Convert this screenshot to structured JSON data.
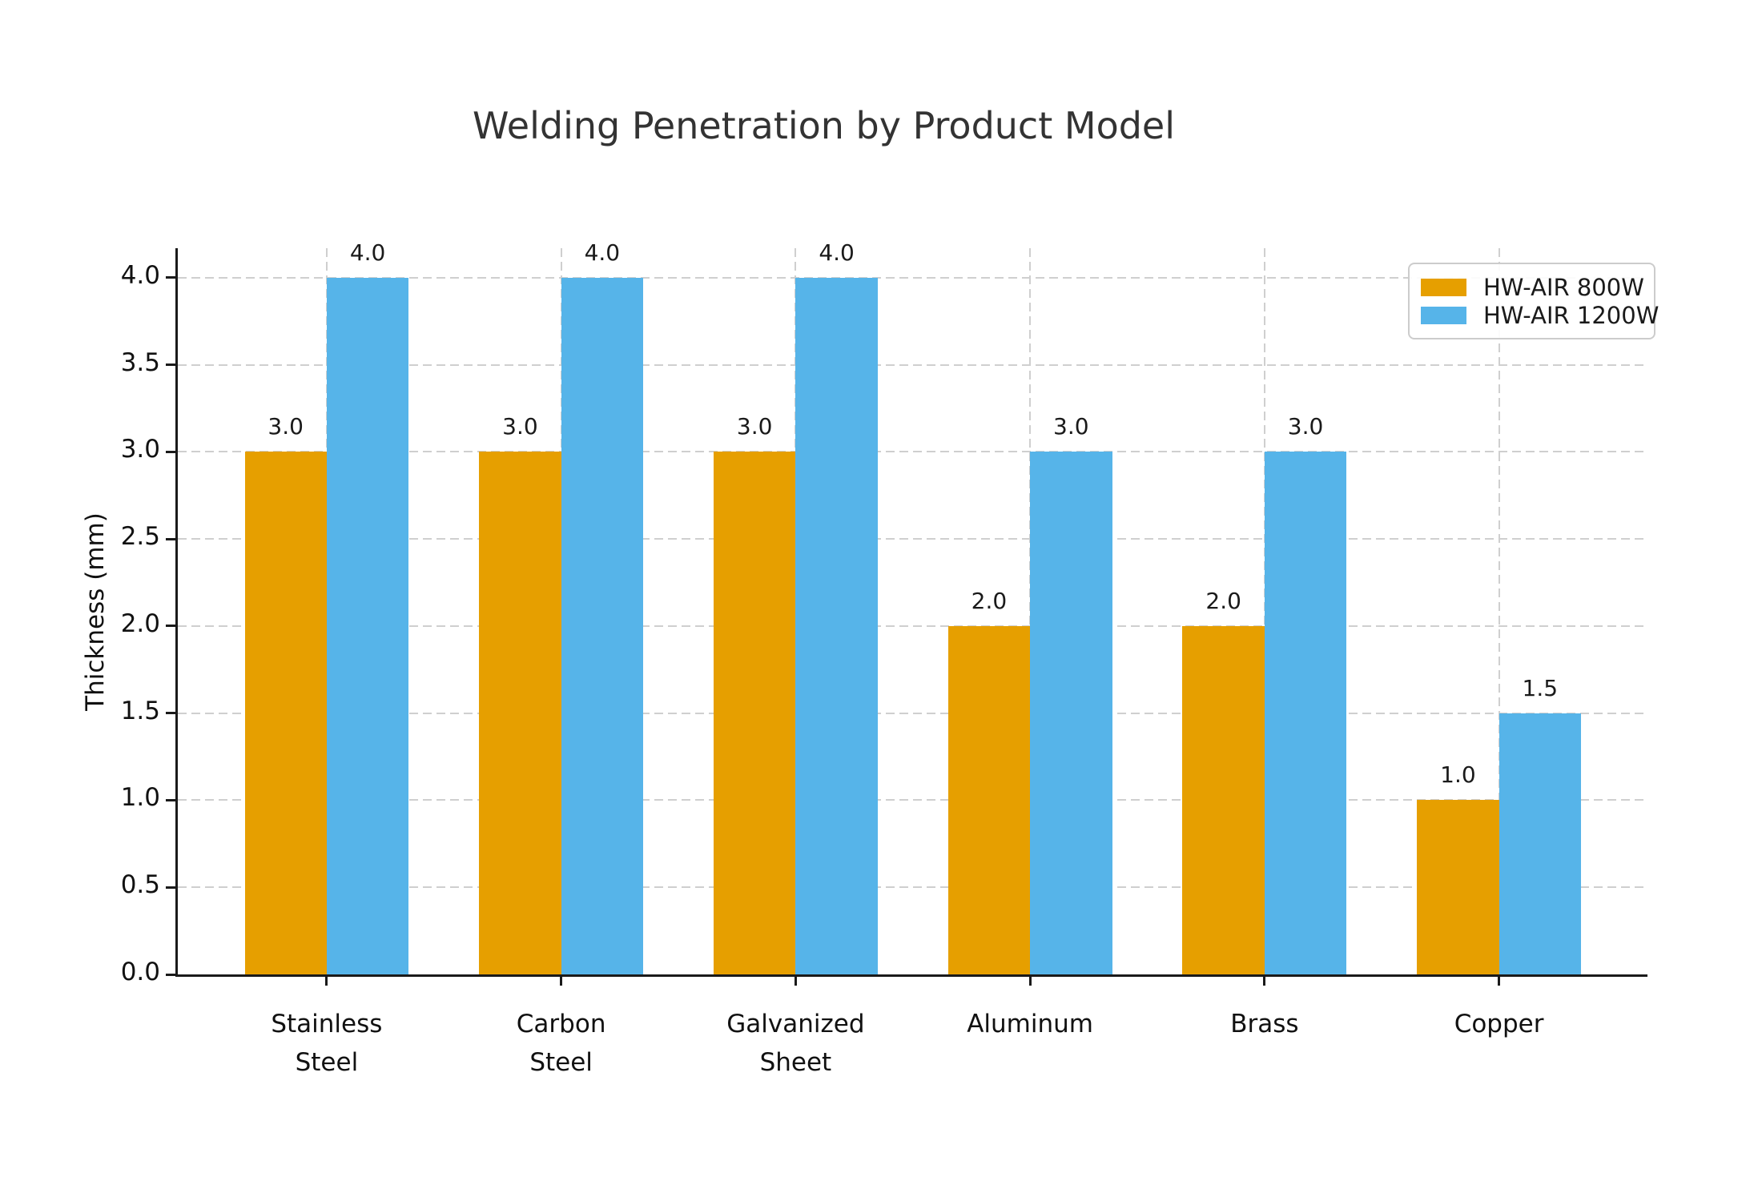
{
  "chart_data": {
    "type": "bar",
    "title": "Welding Penetration by Product Model",
    "xlabel": "",
    "ylabel": "Thickness (mm)",
    "categories": [
      "Stainless\nSteel",
      "Carbon\nSteel",
      "Galvanized\nSheet",
      "Aluminum",
      "Brass",
      "Copper"
    ],
    "series": [
      {
        "name": "HW-AIR 800W",
        "color": "#E69F00",
        "values": [
          3.0,
          3.0,
          3.0,
          2.0,
          2.0,
          1.0
        ]
      },
      {
        "name": "HW-AIR 1200W",
        "color": "#56B4E9",
        "values": [
          4.0,
          4.0,
          4.0,
          3.0,
          3.0,
          1.5
        ]
      }
    ],
    "bar_value_labels": [
      [
        "3.0",
        "3.0",
        "3.0",
        "2.0",
        "2.0",
        "1.0"
      ],
      [
        "4.0",
        "4.0",
        "4.0",
        "3.0",
        "3.0",
        "1.5"
      ]
    ],
    "ylim": [
      0,
      4.17
    ],
    "yticks": [
      0.0,
      0.5,
      1.0,
      1.5,
      2.0,
      2.5,
      3.0,
      3.5,
      4.0
    ],
    "ytick_labels": [
      "0.0",
      "0.5",
      "1.0",
      "1.5",
      "2.0",
      "2.5",
      "3.0",
      "3.5",
      "4.0"
    ],
    "grid": "dashed-both-axes",
    "legend_position": "upper-right",
    "colors": {
      "grid": "#cfcfcf",
      "spine": "#1a1a1a",
      "text": "#111111",
      "title_text": "#333333",
      "legend_border": "#cccccc"
    }
  }
}
